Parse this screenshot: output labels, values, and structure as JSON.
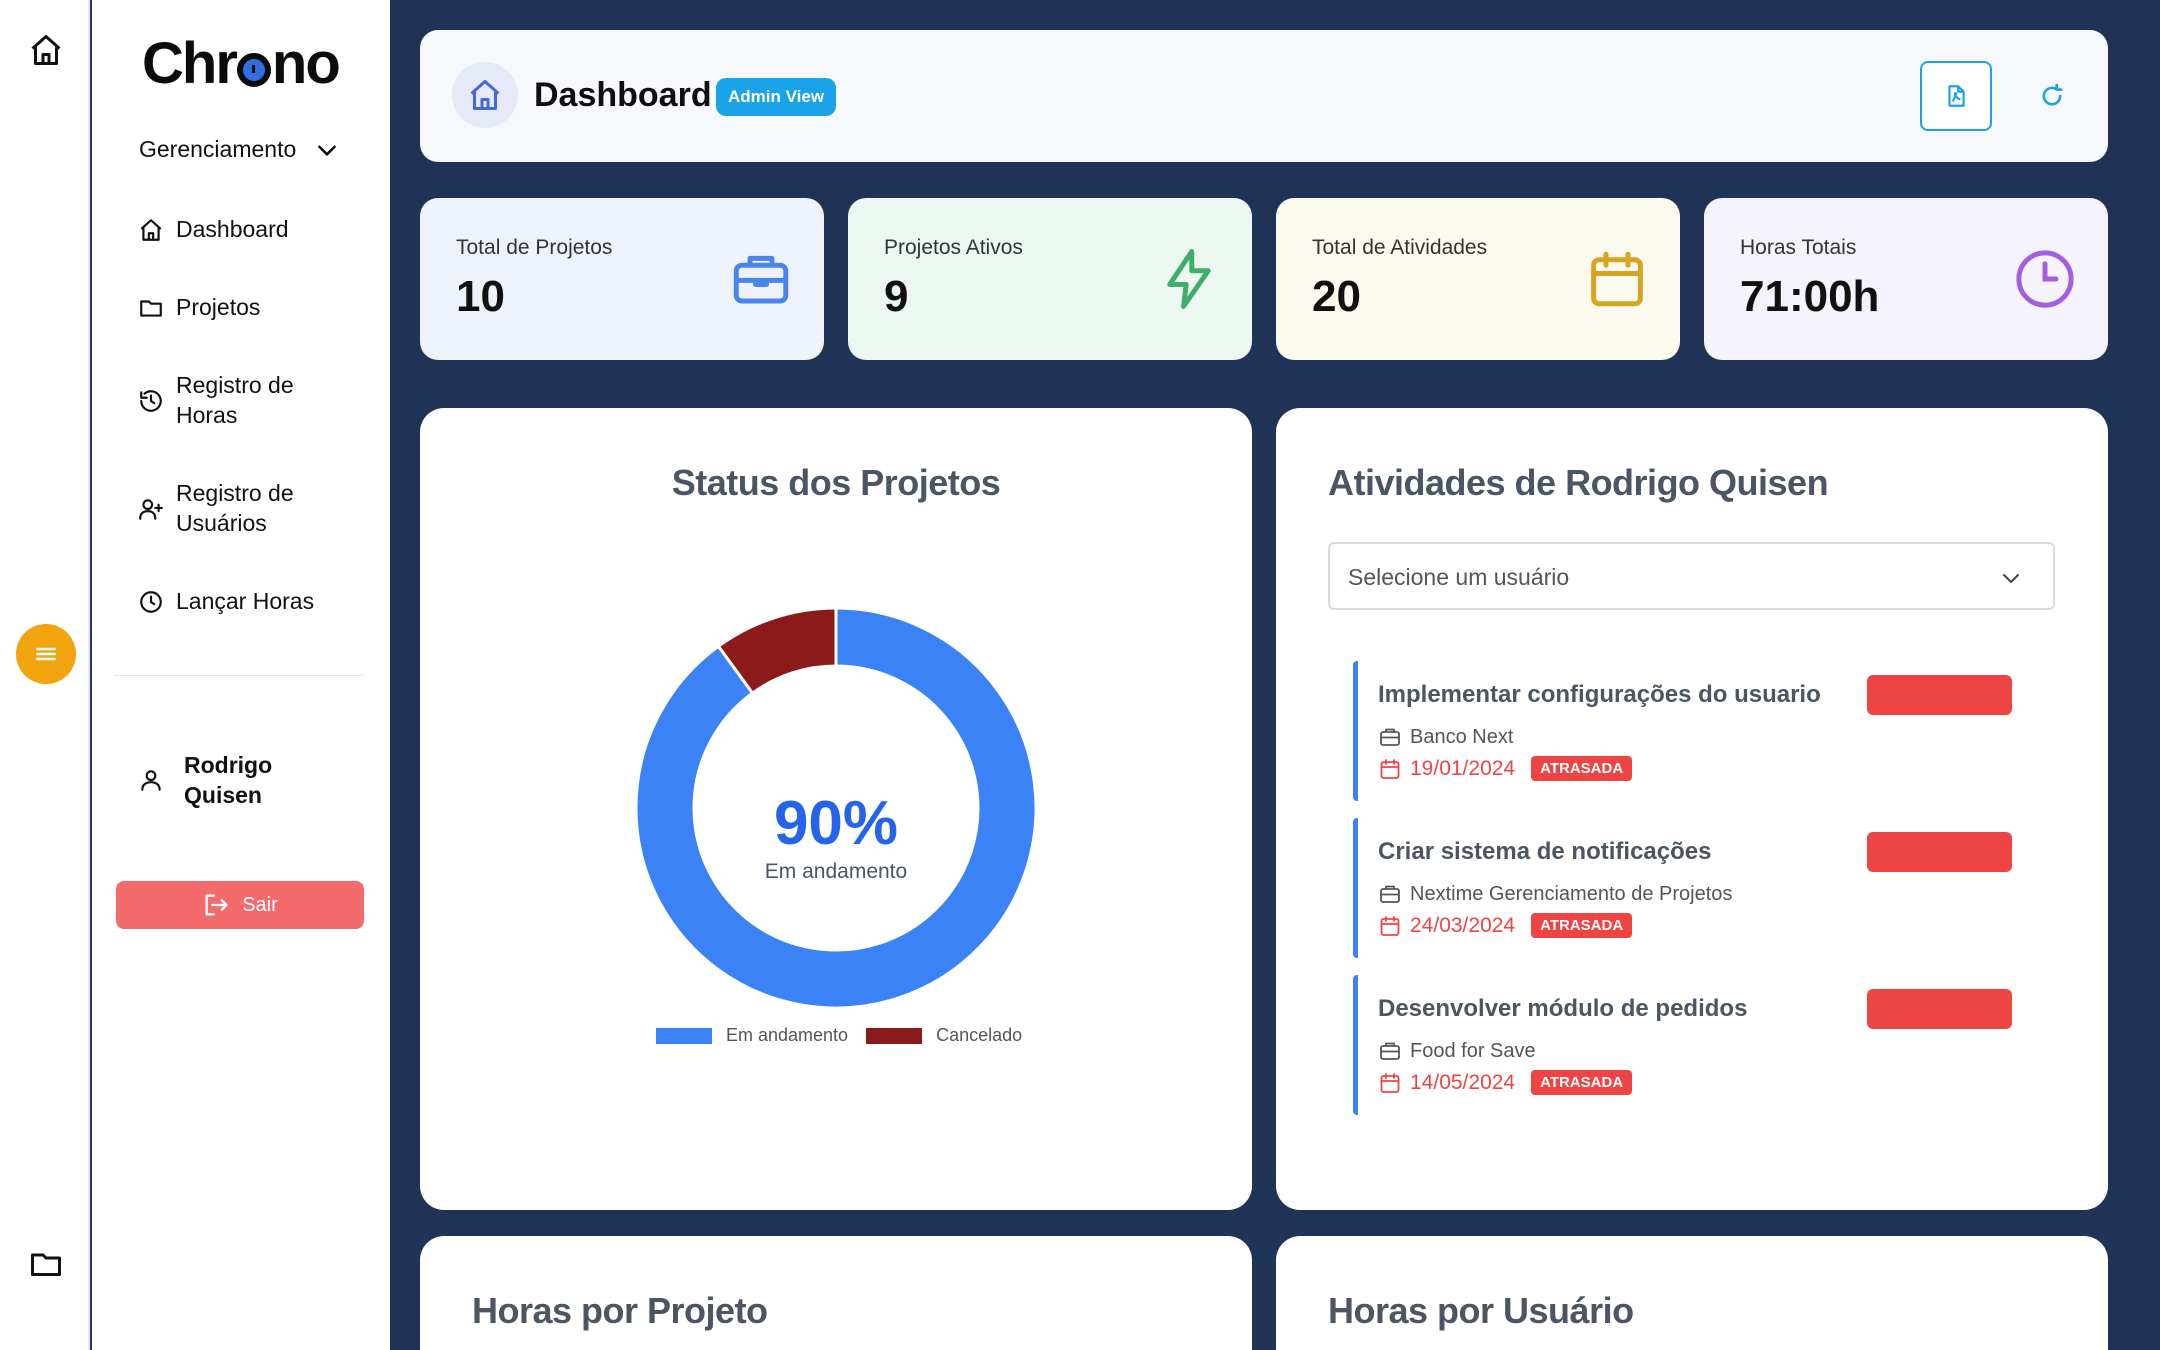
{
  "app": {
    "logo_text_1": "Chr",
    "logo_text_2": "no"
  },
  "sidebar": {
    "section_label": "Gerenciamento",
    "items": [
      {
        "label": "Dashboard",
        "icon": "home-icon"
      },
      {
        "label": "Projetos",
        "icon": "folder-icon"
      },
      {
        "label": "Registro de Horas",
        "icon": "history-icon"
      },
      {
        "label": "Registro de Usuários",
        "icon": "user-plus-icon"
      },
      {
        "label": "Lançar Horas",
        "icon": "clock-icon"
      }
    ],
    "user_name": "Rodrigo Quisen",
    "logout_label": "Sair"
  },
  "header": {
    "title": "Dashboard",
    "badge": "Admin View"
  },
  "stats": [
    {
      "label": "Total de Projetos",
      "value": "10",
      "icon": "briefcase-icon",
      "color": "#4a86e8",
      "bg": "#eef3fb"
    },
    {
      "label": "Projetos Ativos",
      "value": "9",
      "icon": "bolt-icon",
      "color": "#3fae6a",
      "bg": "#edf7f1"
    },
    {
      "label": "Total de Atividades",
      "value": "20",
      "icon": "calendar-icon",
      "color": "#d5a520",
      "bg": "#fcf9ef"
    },
    {
      "label": "Horas Totais",
      "value": "71:00h",
      "icon": "clock-icon",
      "color": "#a45ee0",
      "bg": "#f5f3fb"
    }
  ],
  "status_card": {
    "title": "Status dos Projetos",
    "center_value": "90%",
    "center_label": "Em andamento"
  },
  "chart_data": {
    "type": "pie",
    "categories": [
      "Em andamento",
      "Cancelado"
    ],
    "values": [
      90,
      10
    ],
    "colors": [
      "#3b82f6",
      "#8b1a1a"
    ],
    "legend_position": "bottom"
  },
  "activities_card": {
    "title": "Atividades de Rodrigo Quisen",
    "select_placeholder": "Selecione um usuário",
    "items": [
      {
        "title": "Implementar configurações do usuario",
        "project": "Banco Next",
        "date": "19/01/2024",
        "tag": "ATRASADA"
      },
      {
        "title": "Criar sistema de notificações",
        "project": "Nextime Gerenciamento de Projetos",
        "date": "24/03/2024",
        "tag": "ATRASADA"
      },
      {
        "title": "Desenvolver módulo de pedidos",
        "project": "Food for Save",
        "date": "14/05/2024",
        "tag": "ATRASADA"
      }
    ]
  },
  "bottom_cards": {
    "hours_by_project": "Horas por Projeto",
    "hours_by_user": "Horas por Usuário"
  }
}
